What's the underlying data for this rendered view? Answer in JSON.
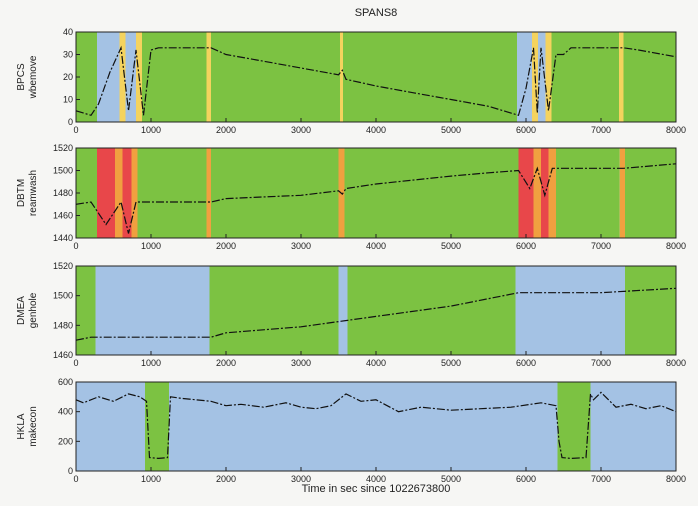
{
  "figure": {
    "title": "SPANS8",
    "xlabel": "Time in sec since 1022673800"
  },
  "colors": {
    "green": "#7cc242",
    "blue": "#a4c2e4",
    "lightblue": "#b9d8d0",
    "yellow": "#f4d35e",
    "orange": "#f0a040",
    "red": "#e8474a",
    "line": "#111111",
    "background": "#f6f6f4"
  },
  "chart_data": [
    {
      "type": "line",
      "ylabel_line1": "BPCS",
      "ylabel_line2": "wbemove",
      "xlim": [
        0,
        8000
      ],
      "ylim": [
        0,
        40
      ],
      "x_ticks": [
        "0",
        "1000",
        "2000",
        "3000",
        "4000",
        "5000",
        "6000",
        "7000",
        "8000"
      ],
      "y_ticks": [
        "0",
        "10",
        "20",
        "30",
        "40"
      ],
      "bands": [
        {
          "from": 0,
          "to": 280,
          "color": "green"
        },
        {
          "from": 280,
          "to": 580,
          "color": "blue"
        },
        {
          "from": 580,
          "to": 660,
          "color": "yellow"
        },
        {
          "from": 660,
          "to": 800,
          "color": "blue"
        },
        {
          "from": 800,
          "to": 880,
          "color": "yellow"
        },
        {
          "from": 880,
          "to": 1740,
          "color": "green"
        },
        {
          "from": 1740,
          "to": 1800,
          "color": "yellow"
        },
        {
          "from": 1800,
          "to": 3520,
          "color": "green"
        },
        {
          "from": 3520,
          "to": 3560,
          "color": "yellow"
        },
        {
          "from": 3560,
          "to": 5880,
          "color": "green"
        },
        {
          "from": 5880,
          "to": 6080,
          "color": "blue"
        },
        {
          "from": 6080,
          "to": 6160,
          "color": "yellow"
        },
        {
          "from": 6160,
          "to": 6260,
          "color": "blue"
        },
        {
          "from": 6260,
          "to": 6340,
          "color": "yellow"
        },
        {
          "from": 6340,
          "to": 7240,
          "color": "green"
        },
        {
          "from": 7240,
          "to": 7300,
          "color": "yellow"
        },
        {
          "from": 7300,
          "to": 8000,
          "color": "green"
        }
      ],
      "series": [
        {
          "x": [
            0,
            200,
            300,
            450,
            600,
            700,
            800,
            900,
            1000,
            1100,
            1500,
            1800,
            2000,
            2500,
            3000,
            3500,
            3550,
            3600,
            4000,
            4500,
            5000,
            5500,
            5900,
            6000,
            6100,
            6150,
            6200,
            6300,
            6400,
            6500,
            6600,
            7000,
            7300,
            7500,
            8000
          ],
          "y": [
            5,
            3,
            8,
            22,
            33,
            5,
            32,
            3,
            32,
            33,
            33,
            33,
            30,
            27,
            24,
            21,
            23,
            19,
            16,
            13,
            10,
            7,
            3,
            15,
            33,
            4,
            33,
            5,
            30,
            30,
            33,
            33,
            33,
            32,
            29
          ]
        }
      ]
    },
    {
      "type": "line",
      "ylabel_line1": "DBTM",
      "ylabel_line2": "reamwash",
      "xlim": [
        0,
        8000
      ],
      "ylim": [
        1440,
        1520
      ],
      "x_ticks": [
        "0",
        "1000",
        "2000",
        "3000",
        "4000",
        "5000",
        "6000",
        "7000",
        "8000"
      ],
      "y_ticks": [
        "1440",
        "1460",
        "1480",
        "1500",
        "1520"
      ],
      "bands": [
        {
          "from": 0,
          "to": 280,
          "color": "green"
        },
        {
          "from": 280,
          "to": 520,
          "color": "red"
        },
        {
          "from": 520,
          "to": 620,
          "color": "orange"
        },
        {
          "from": 620,
          "to": 740,
          "color": "red"
        },
        {
          "from": 740,
          "to": 820,
          "color": "orange"
        },
        {
          "from": 820,
          "to": 1740,
          "color": "green"
        },
        {
          "from": 1740,
          "to": 1800,
          "color": "orange"
        },
        {
          "from": 1800,
          "to": 3500,
          "color": "green"
        },
        {
          "from": 3500,
          "to": 3580,
          "color": "orange"
        },
        {
          "from": 3580,
          "to": 5900,
          "color": "green"
        },
        {
          "from": 5900,
          "to": 6100,
          "color": "red"
        },
        {
          "from": 6100,
          "to": 6200,
          "color": "orange"
        },
        {
          "from": 6200,
          "to": 6300,
          "color": "red"
        },
        {
          "from": 6300,
          "to": 6400,
          "color": "orange"
        },
        {
          "from": 6400,
          "to": 7250,
          "color": "green"
        },
        {
          "from": 7250,
          "to": 7320,
          "color": "orange"
        },
        {
          "from": 7320,
          "to": 8000,
          "color": "green"
        }
      ],
      "series": [
        {
          "x": [
            0,
            200,
            400,
            600,
            700,
            800,
            900,
            1000,
            1200,
            1700,
            1800,
            2000,
            3000,
            3500,
            3550,
            3600,
            4000,
            5000,
            5500,
            5900,
            6050,
            6150,
            6250,
            6350,
            6400,
            7000,
            7300,
            8000
          ],
          "y": [
            1470,
            1472,
            1452,
            1472,
            1444,
            1472,
            1472,
            1472,
            1472,
            1472,
            1472,
            1475,
            1478,
            1482,
            1479,
            1484,
            1488,
            1495,
            1498,
            1500,
            1484,
            1502,
            1478,
            1502,
            1502,
            1502,
            1502,
            1506
          ]
        }
      ]
    },
    {
      "type": "line",
      "ylabel_line1": "DMEA",
      "ylabel_line2": "genhole",
      "xlim": [
        0,
        8000
      ],
      "ylim": [
        1460,
        1520
      ],
      "x_ticks": [
        "0",
        "1000",
        "2000",
        "3000",
        "4000",
        "5000",
        "6000",
        "7000",
        "8000"
      ],
      "y_ticks": [
        "1460",
        "1480",
        "1500",
        "1520"
      ],
      "bands": [
        {
          "from": 0,
          "to": 260,
          "color": "green"
        },
        {
          "from": 260,
          "to": 1780,
          "color": "blue"
        },
        {
          "from": 1780,
          "to": 3500,
          "color": "green"
        },
        {
          "from": 3500,
          "to": 3620,
          "color": "blue"
        },
        {
          "from": 3620,
          "to": 5860,
          "color": "green"
        },
        {
          "from": 5860,
          "to": 7320,
          "color": "blue"
        },
        {
          "from": 7320,
          "to": 8000,
          "color": "green"
        }
      ],
      "series": [
        {
          "x": [
            0,
            200,
            1800,
            2000,
            3000,
            4000,
            5000,
            5900,
            6000,
            7000,
            8000
          ],
          "y": [
            1470,
            1472,
            1472,
            1475,
            1479,
            1486,
            1493,
            1502,
            1502,
            1502,
            1505
          ]
        }
      ]
    },
    {
      "type": "line",
      "ylabel_line1": "HKLA",
      "ylabel_line2": "makecon",
      "xlim": [
        0,
        8000
      ],
      "ylim": [
        0,
        600
      ],
      "x_ticks": [
        "0",
        "1000",
        "2000",
        "3000",
        "4000",
        "5000",
        "6000",
        "7000",
        "8000"
      ],
      "y_ticks": [
        "0",
        "200",
        "400",
        "600"
      ],
      "bands": [
        {
          "from": 0,
          "to": 920,
          "color": "blue"
        },
        {
          "from": 920,
          "to": 1240,
          "color": "green"
        },
        {
          "from": 1240,
          "to": 6420,
          "color": "blue"
        },
        {
          "from": 6420,
          "to": 6860,
          "color": "green"
        },
        {
          "from": 6860,
          "to": 8000,
          "color": "blue"
        }
      ],
      "series": [
        {
          "x": [
            0,
            100,
            300,
            500,
            700,
            850,
            940,
            980,
            1100,
            1220,
            1260,
            1400,
            1600,
            1800,
            2000,
            2200,
            2500,
            2800,
            3000,
            3200,
            3400,
            3600,
            3800,
            4000,
            4300,
            4600,
            5000,
            5400,
            5800,
            6200,
            6400,
            6440,
            6480,
            6600,
            6800,
            6860,
            6900,
            7000,
            7200,
            7400,
            7600,
            7800,
            8000
          ],
          "y": [
            480,
            460,
            500,
            470,
            520,
            500,
            470,
            90,
            85,
            90,
            500,
            490,
            480,
            470,
            440,
            450,
            430,
            460,
            430,
            420,
            440,
            520,
            470,
            480,
            400,
            430,
            410,
            420,
            430,
            460,
            440,
            200,
            90,
            85,
            90,
            520,
            480,
            530,
            430,
            450,
            420,
            440,
            400
          ]
        }
      ]
    }
  ]
}
